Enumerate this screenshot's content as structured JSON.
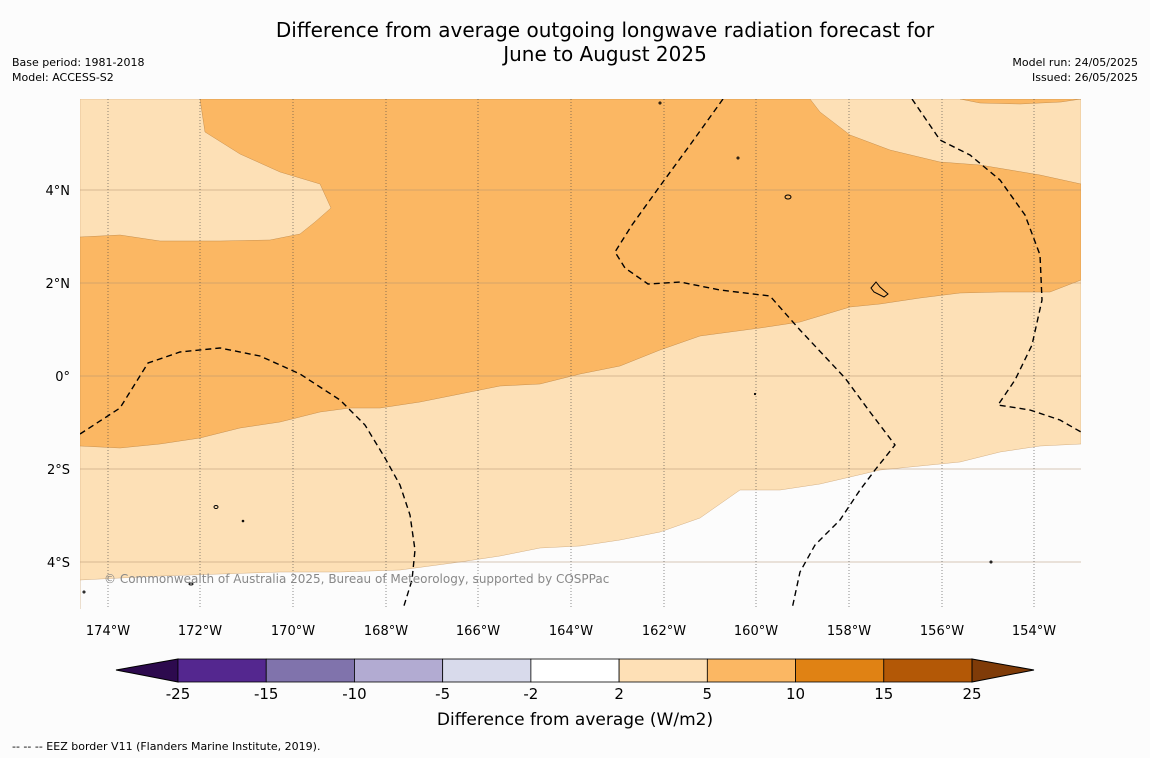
{
  "title_line1": "Difference from average outgoing longwave radiation forecast for",
  "title_line2": "June to August 2025",
  "base_period": "Base period: 1981-2018",
  "model": "Model: ACCESS-S2",
  "model_run": "Model run: 24/05/2025",
  "issued": "Issued: 26/05/2025",
  "copyright": "© Commonwealth of Australia 2025, Bureau of Meteorology, supported by COSPPac",
  "lat_labels": [
    "4°N",
    "2°N",
    "0°",
    "2°S",
    "4°S"
  ],
  "lon_labels": [
    "174°W",
    "172°W",
    "170°W",
    "168°W",
    "166°W",
    "164°W",
    "162°W",
    "160°W",
    "158°W",
    "156°W",
    "154°W"
  ],
  "colorbar": {
    "title": "Difference from average (W/m2)",
    "ticks": [
      "-25",
      "-15",
      "-10",
      "-5",
      "-2",
      "2",
      "5",
      "10",
      "15",
      "25"
    ],
    "colors": [
      "#2d0a4e",
      "#54278f",
      "#8073ac",
      "#b2abd2",
      "#d8daeb",
      "#ffffff",
      "#fee0b6",
      "#fbb763",
      "#e08214",
      "#b35806",
      "#7f3b08"
    ]
  },
  "legend_footer": "--  --  -- EEZ border V11 (Flanders Marine Institute, 2019)."
}
